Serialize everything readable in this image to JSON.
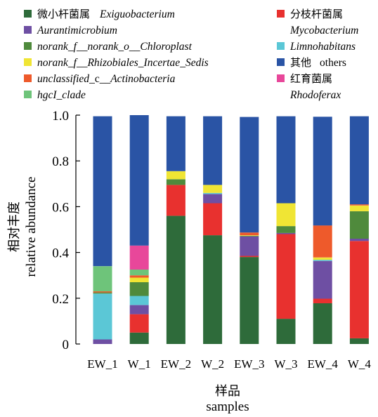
{
  "chart_data": {
    "type": "bar",
    "stacked": true,
    "categories": [
      "EW_1",
      "W_1",
      "EW_2",
      "W_2",
      "EW_3",
      "W_3",
      "EW_4",
      "W_4"
    ],
    "xlabel_cn": "样品",
    "xlabel": "samples",
    "ylabel_cn": "相对丰度",
    "ylabel": "relative abundance",
    "ylim": [
      0,
      1.0
    ],
    "yticks": [
      "0",
      "0.2",
      "0.4",
      "0.6",
      "0.8",
      "1.0"
    ],
    "legend_position": "top",
    "series": [
      {
        "name_cn": "微小杆菌属",
        "name": "Exiguobacterium",
        "color": "#2e6b3a",
        "values": [
          0.0,
          0.05,
          0.56,
          0.475,
          0.38,
          0.11,
          0.178,
          0.025
        ]
      },
      {
        "name": "Mycobacterium",
        "name_cn": "分枝杆菌属",
        "color": "#e8312f",
        "values": [
          0.0,
          0.08,
          0.135,
          0.14,
          0.005,
          0.37,
          0.02,
          0.425
        ]
      },
      {
        "name": "Aurantimicrobium",
        "color": "#6e4fa3",
        "values": [
          0.02,
          0.04,
          0.0,
          0.04,
          0.085,
          0.005,
          0.165,
          0.01
        ]
      },
      {
        "name": "Limnohabitans",
        "color": "#5bc7d6",
        "values": [
          0.2,
          0.04,
          0.0,
          0.005,
          0.0,
          0.0,
          0.005,
          0.0
        ]
      },
      {
        "name": "norank_f__norank_o__Chloroplast",
        "color": "#4f8a3c",
        "values": [
          0.005,
          0.06,
          0.025,
          0.0,
          0.003,
          0.03,
          0.0,
          0.12
        ]
      },
      {
        "name": "norank_f__Rhizobiales_Incertae_Sedis",
        "color": "#f0e534",
        "values": [
          0.0,
          0.02,
          0.035,
          0.035,
          0.002,
          0.1,
          0.01,
          0.025
        ]
      },
      {
        "name": "unclassified_c__Actinobacteria",
        "color": "#ee5a2b",
        "values": [
          0.005,
          0.01,
          0.0,
          0.0,
          0.012,
          0.0,
          0.14,
          0.005
        ]
      },
      {
        "name": "hgcI_clade",
        "color": "#6ec47a",
        "values": [
          0.11,
          0.025,
          0.0,
          0.0,
          0.0,
          0.0,
          0.0,
          0.0
        ]
      },
      {
        "name": "Rhodoferax",
        "name_cn": "红育菌属",
        "color": "#e8479a",
        "values": [
          0.0,
          0.105,
          0.0,
          0.0,
          0.0,
          0.0,
          0.0,
          0.0
        ]
      },
      {
        "name": "others",
        "name_cn": "其他",
        "color": "#2a54a5",
        "values": [
          0.655,
          0.57,
          0.24,
          0.3,
          0.505,
          0.38,
          0.475,
          0.385
        ]
      }
    ],
    "legend": {
      "left": [
        {
          "swatch": "#2e6b3a",
          "cn": "微小杆菌属",
          "en": "Exiguobacterium"
        },
        {
          "swatch": "#6e4fa3",
          "en": "Aurantimicrobium"
        },
        {
          "swatch": "#4f8a3c",
          "en": "norank_f__norank_o__Chloroplast"
        },
        {
          "swatch": "#f0e534",
          "en": "norank_f__Rhizobiales_Incertae_Sedis"
        },
        {
          "swatch": "#ee5a2b",
          "en": "unclassified",
          "en_plain": "_c__",
          "en2": "Actinobacteria"
        },
        {
          "swatch": "#6ec47a",
          "en": "hgcI_clade"
        }
      ],
      "right": [
        {
          "swatch": "#e8312f",
          "cn": "分枝杆菌属",
          "en": "Mycobacterium"
        },
        {
          "swatch": "#5bc7d6",
          "en": "Limnohabitans"
        },
        {
          "swatch": "#2a54a5",
          "cn": "其他",
          "en": "others"
        },
        {
          "swatch": "#e8479a",
          "cn": "红育菌属",
          "en": "Rhodoferax"
        }
      ]
    }
  }
}
